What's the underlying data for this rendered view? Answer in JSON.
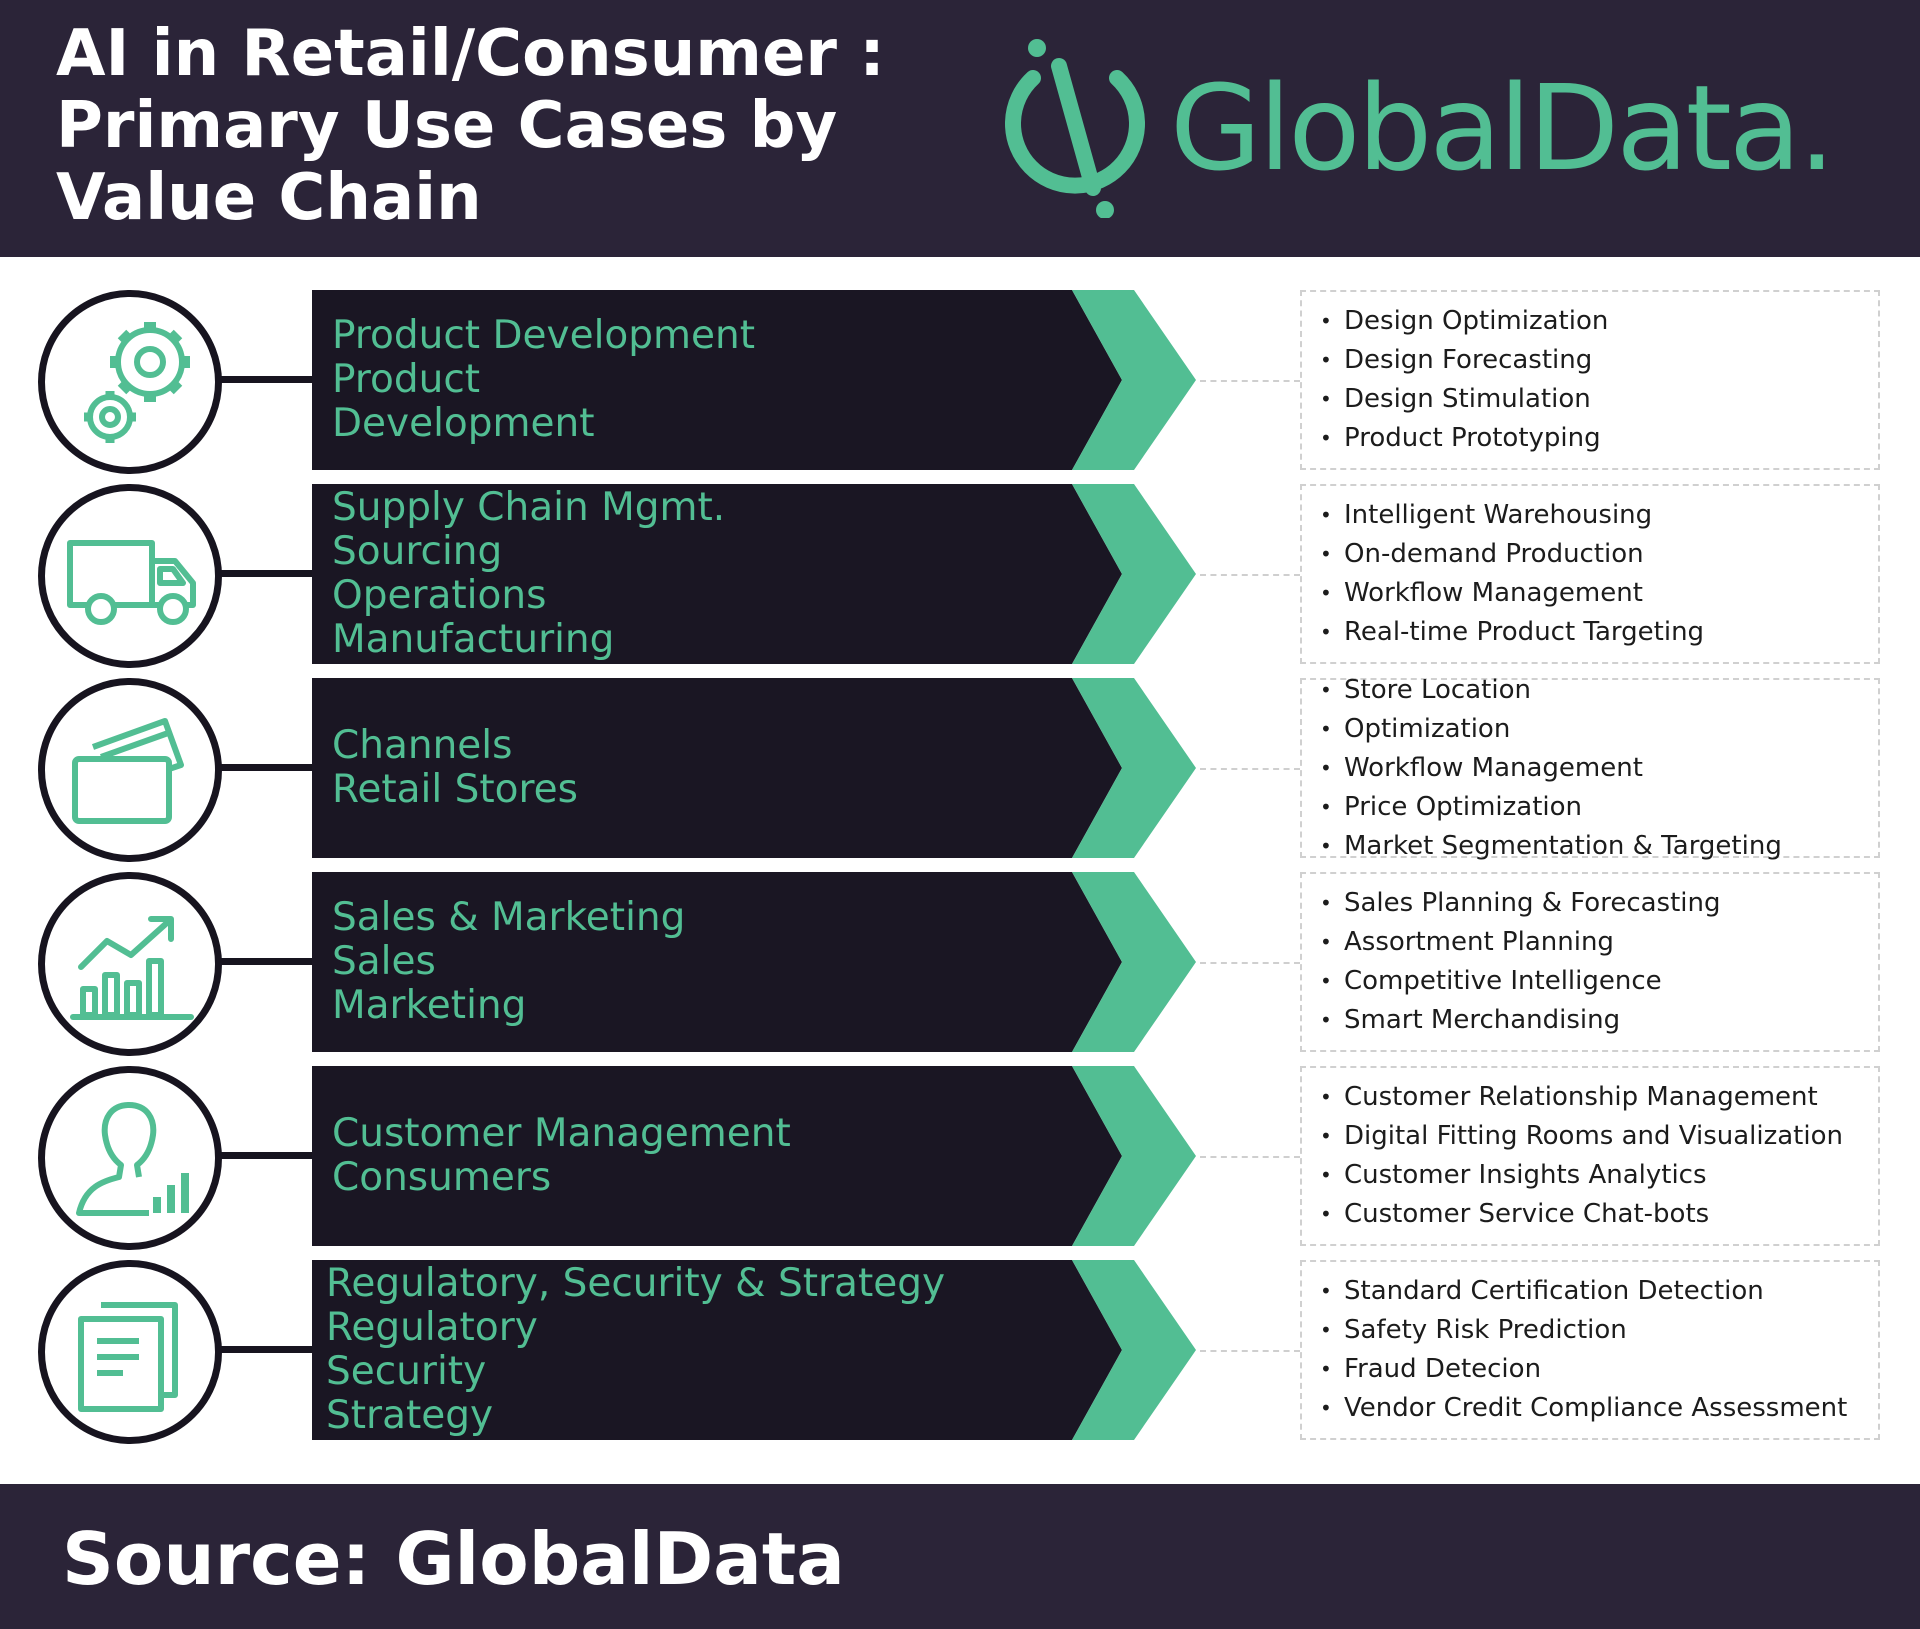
{
  "header": {
    "title_lines": [
      "AI in Retail/Consumer :",
      "Primary Use Cases by",
      "Value Chain"
    ],
    "logo_text": "GlobalData."
  },
  "colors": {
    "header_bg": "#2b2438",
    "accent": "#52be93",
    "band_bg": "#1a1623",
    "outline": "#17141f"
  },
  "rows": [
    {
      "icon": "gears-icon",
      "lines": [
        "Product Development",
        "Product",
        "Development"
      ],
      "cases": [
        "Design Optimization",
        "Design Forecasting",
        "Design Stimulation",
        "Product Prototyping"
      ]
    },
    {
      "icon": "truck-icon",
      "lines": [
        "Supply Chain Mgmt.",
        "Sourcing",
        "Operations",
        "Manufacturing"
      ],
      "cases": [
        "Intelligent Warehousing",
        "On-demand Production",
        "Workflow Management",
        "Real-time  Product Targeting"
      ]
    },
    {
      "icon": "cards-icon",
      "lines": [
        "Channels",
        "Retail Stores"
      ],
      "cases": [
        "Store Location",
        "Optimization",
        "Workflow Management",
        "Price Optimization",
        "Market Segmentation & Targeting"
      ]
    },
    {
      "icon": "growth-chart-icon",
      "lines": [
        "Sales & Marketing",
        "Sales",
        "Marketing"
      ],
      "cases": [
        "Sales Planning & Forecasting",
        "Assortment Planning",
        "Competitive Intelligence",
        "Smart Merchandising"
      ]
    },
    {
      "icon": "customer-analytics-icon",
      "lines": [
        "Customer Management",
        "Consumers"
      ],
      "cases": [
        "Customer Relationship Management",
        "Digital Fitting Rooms and Visualization",
        "Customer Insights Analytics",
        "Customer Service Chat-bots"
      ]
    },
    {
      "icon": "documents-icon",
      "lines": [
        "Regulatory, Security & Strategy",
        "Regulatory",
        "Security",
        "Strategy"
      ],
      "cases": [
        "Standard Certification Detection",
        "Safety Risk Prediction",
        "Fraud Detecion",
        "Vendor Credit  Compliance Assessment"
      ]
    }
  ],
  "footer": {
    "source": "Source: GlobalData"
  }
}
